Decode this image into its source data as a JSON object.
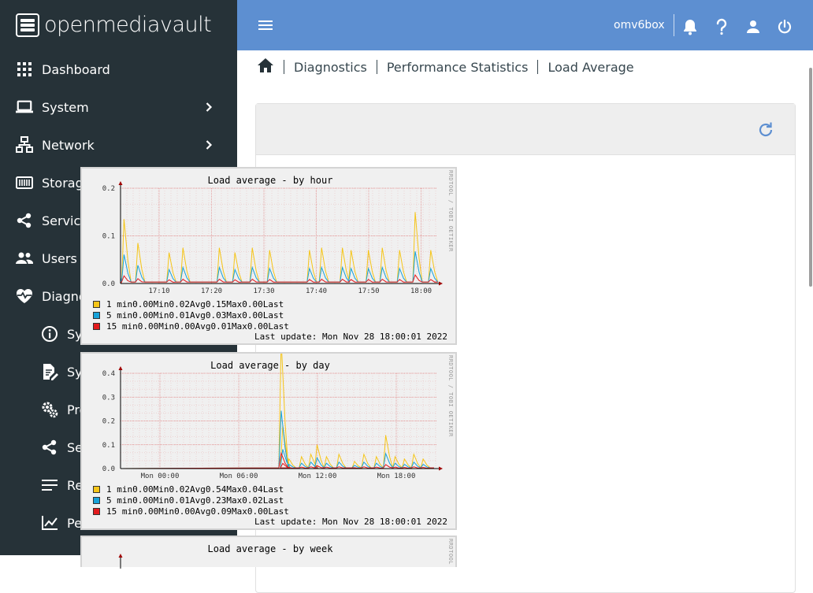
{
  "brand": {
    "name": "openmediavault"
  },
  "sidebar": {
    "items": [
      {
        "label": "Dashboard",
        "icon": "dashboard-icon",
        "level": 0,
        "expand": "none"
      },
      {
        "label": "System",
        "icon": "laptop-icon",
        "level": 0,
        "expand": "right"
      },
      {
        "label": "Network",
        "icon": "network-icon",
        "level": 0,
        "expand": "right"
      },
      {
        "label": "Storage",
        "icon": "storage-icon",
        "level": 0,
        "expand": "right"
      },
      {
        "label": "Services",
        "icon": "share-icon",
        "level": 0,
        "expand": "right"
      },
      {
        "label": "Users",
        "icon": "users-icon",
        "level": 0,
        "expand": "right"
      },
      {
        "label": "Diagnostics",
        "icon": "heart-pulse-icon",
        "level": 0,
        "expand": "down"
      },
      {
        "label": "System Information",
        "icon": "info-icon",
        "level": 1,
        "expand": "none"
      },
      {
        "label": "System Logs",
        "icon": "file-edit-icon",
        "level": 1,
        "expand": "right"
      },
      {
        "label": "Processes",
        "icon": "gears-icon",
        "level": 1,
        "expand": "none"
      },
      {
        "label": "Services",
        "icon": "share-icon",
        "level": 1,
        "expand": "right"
      },
      {
        "label": "Report",
        "icon": "report-icon",
        "level": 1,
        "expand": "none"
      },
      {
        "label": "Performance Statistics",
        "icon": "chart-line-icon",
        "level": 1,
        "expand": "down"
      }
    ]
  },
  "topbar": {
    "hostname": "omv6box",
    "icons": [
      "menu-icon",
      "bell-icon",
      "help-icon",
      "user-icon",
      "power-icon"
    ]
  },
  "breadcrumb": [
    "Diagnostics",
    "Performance Statistics",
    "Load Average"
  ],
  "colors": {
    "sidebar_bg": "#263238",
    "topbar_bg": "#5d8fd1",
    "accent": "#5d8fd1",
    "series_1min": "#f5c518",
    "series_5min": "#17a2d9",
    "series_15min": "#e31a1c"
  },
  "graphs": [
    {
      "title": "Load average - by hour",
      "side_text": "RRDTOOL / TOBI OETIKER",
      "y_ticks": [
        "0.2",
        "0.1",
        "0.0"
      ],
      "x_ticks": [
        "17:10",
        "17:20",
        "17:30",
        "17:40",
        "17:50",
        "18:00"
      ],
      "legend": [
        {
          "label": "1 min",
          "min": "0.00",
          "avg": "0.02",
          "max": "0.15",
          "last": "0.00"
        },
        {
          "label": "5 min",
          "min": "0.00",
          "avg": "0.01",
          "max": "0.03",
          "last": "0.00"
        },
        {
          "label": "15 min",
          "min": "0.00",
          "avg": "0.00",
          "max": "0.01",
          "last": "0.00"
        }
      ],
      "last_update": "Last update: Mon Nov 28 18:00:01 2022"
    },
    {
      "title": "Load average - by day",
      "side_text": "RRDTOOL / TOBI OETIKER",
      "y_ticks": [
        "0.4",
        "0.3",
        "0.2",
        "0.1",
        "0.0"
      ],
      "x_ticks": [
        "Mon 00:00",
        "Mon 06:00",
        "Mon 12:00",
        "Mon 18:00"
      ],
      "legend": [
        {
          "label": "1 min",
          "min": "0.00",
          "avg": "0.02",
          "max": "0.54",
          "last": "0.04"
        },
        {
          "label": "5 min",
          "min": "0.00",
          "avg": "0.01",
          "max": "0.23",
          "last": "0.02"
        },
        {
          "label": "15 min",
          "min": "0.00",
          "avg": "0.00",
          "max": "0.09",
          "last": "0.00"
        }
      ],
      "last_update": "Last update: Mon Nov 28 18:00:01 2022"
    },
    {
      "title": "Load average - by week",
      "side_text": "RRDTOOL",
      "y_ticks": [],
      "x_ticks": [],
      "legend": [],
      "last_update": ""
    }
  ],
  "legend_words": {
    "min": "Min",
    "avg": "Avg",
    "max": "Max",
    "last": "Last"
  }
}
